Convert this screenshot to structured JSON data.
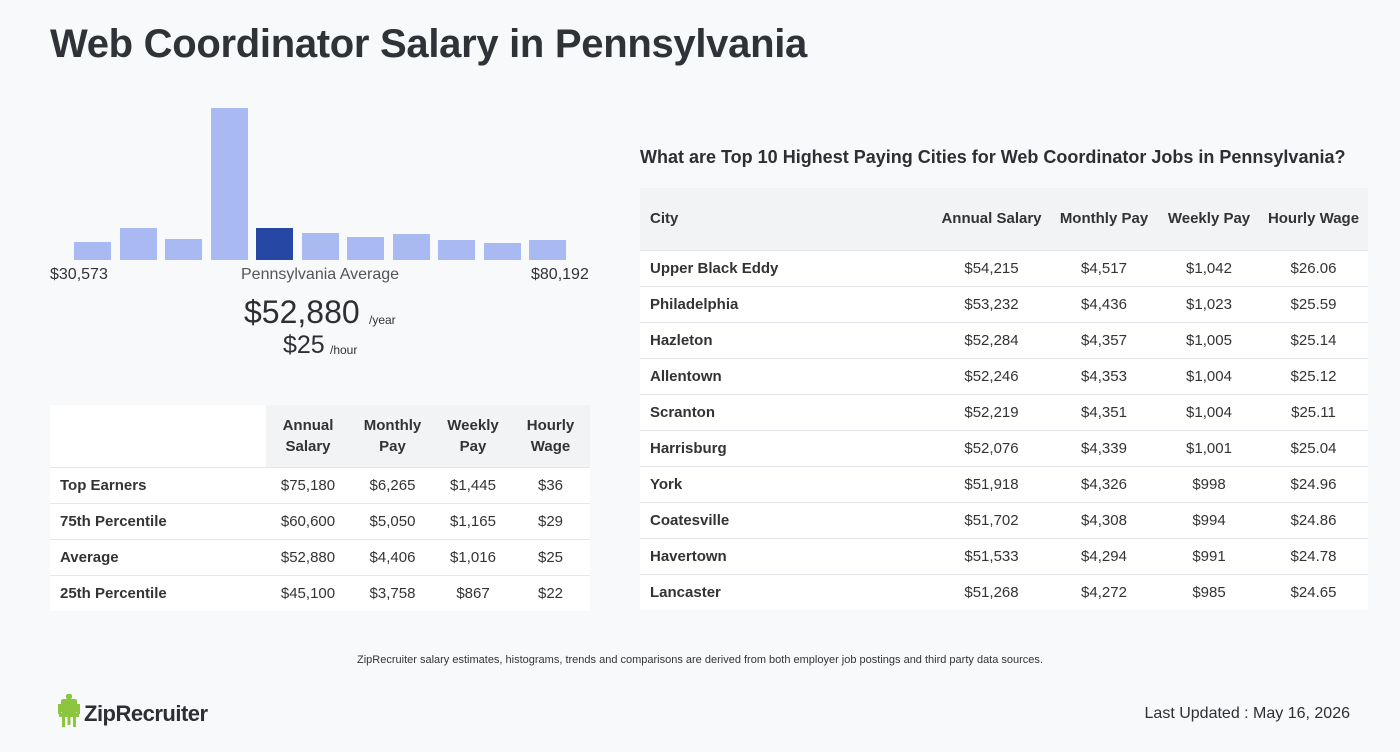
{
  "page": {
    "title": "Web Coordinator Salary in Pennsylvania"
  },
  "histogram": {
    "bar_levels": [
      0.12,
      0.21,
      0.14,
      1.0,
      0.21,
      0.18,
      0.15,
      0.17,
      0.13,
      0.11,
      0.13
    ],
    "active_index": 4,
    "min_label": "$30,573",
    "max_label": "$80,192",
    "avg_label": "Pennsylvania Average",
    "avg_annual": "$52,880",
    "avg_annual_unit": "/year",
    "avg_hourly": "$25",
    "avg_hourly_unit": "/hour",
    "colors": {
      "bar": "#a9b9f1",
      "active": "#2747a5"
    }
  },
  "percentile_table": {
    "headers": [
      "",
      "Annual Salary",
      "Monthly Pay",
      "Weekly Pay",
      "Hourly Wage"
    ],
    "rows": [
      [
        "Top Earners",
        "$75,180",
        "$6,265",
        "$1,445",
        "$36"
      ],
      [
        "75th Percentile",
        "$60,600",
        "$5,050",
        "$1,165",
        "$29"
      ],
      [
        "Average",
        "$52,880",
        "$4,406",
        "$1,016",
        "$25"
      ],
      [
        "25th Percentile",
        "$45,100",
        "$3,758",
        "$867",
        "$22"
      ]
    ]
  },
  "cities": {
    "heading": "What are Top 10 Highest Paying Cities for Web Coordinator Jobs in Pennsylvania?",
    "headers": [
      "City",
      "Annual Salary",
      "Monthly Pay",
      "Weekly Pay",
      "Hourly Wage"
    ],
    "rows": [
      [
        "Upper Black Eddy",
        "$54,215",
        "$4,517",
        "$1,042",
        "$26.06"
      ],
      [
        "Philadelphia",
        "$53,232",
        "$4,436",
        "$1,023",
        "$25.59"
      ],
      [
        "Hazleton",
        "$52,284",
        "$4,357",
        "$1,005",
        "$25.14"
      ],
      [
        "Allentown",
        "$52,246",
        "$4,353",
        "$1,004",
        "$25.12"
      ],
      [
        "Scranton",
        "$52,219",
        "$4,351",
        "$1,004",
        "$25.11"
      ],
      [
        "Harrisburg",
        "$52,076",
        "$4,339",
        "$1,001",
        "$25.04"
      ],
      [
        "York",
        "$51,918",
        "$4,326",
        "$998",
        "$24.96"
      ],
      [
        "Coatesville",
        "$51,702",
        "$4,308",
        "$994",
        "$24.86"
      ],
      [
        "Havertown",
        "$51,533",
        "$4,294",
        "$991",
        "$24.78"
      ],
      [
        "Lancaster",
        "$51,268",
        "$4,272",
        "$985",
        "$24.65"
      ]
    ]
  },
  "footer": {
    "footnote": "ZipRecruiter salary estimates, histograms, trends and comparisons are derived from both employer job postings and third party data sources.",
    "logo_text": "ZipRecruiter",
    "logo_icon": "ziprecruiter-chair-icon",
    "last_updated": "Last Updated : May 16, 2026",
    "colors": {
      "logo_green": "#8cc63f"
    }
  }
}
